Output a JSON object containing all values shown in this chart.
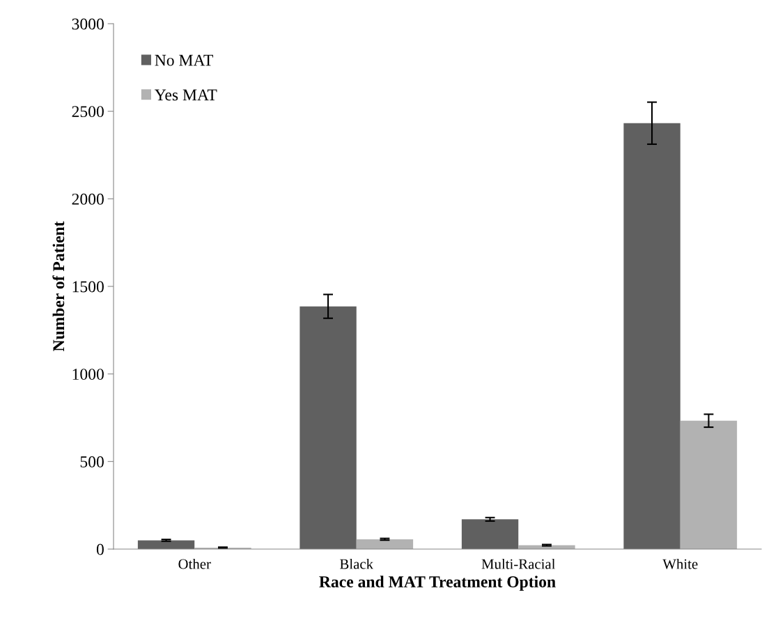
{
  "chart_data": {
    "type": "bar",
    "xlabel": "Race and MAT Treatment Option",
    "ylabel": "Number of Patient",
    "categories": [
      "Other",
      "Black",
      "Multi-Racial",
      "White"
    ],
    "series": [
      {
        "name": "No MAT",
        "color": "#606060",
        "values": [
          50,
          1386,
          170,
          2432
        ],
        "errors": [
          5,
          68,
          10,
          120
        ]
      },
      {
        "name": "Yes MAT",
        "color": "#b2b2b2",
        "values": [
          8,
          56,
          22,
          733
        ],
        "errors": [
          3,
          5,
          4,
          37
        ]
      }
    ],
    "ylim": [
      0,
      3000
    ],
    "yticks": [
      0,
      500,
      1000,
      1500,
      2000,
      2500,
      3000
    ],
    "grid": false,
    "legend": "top left"
  }
}
